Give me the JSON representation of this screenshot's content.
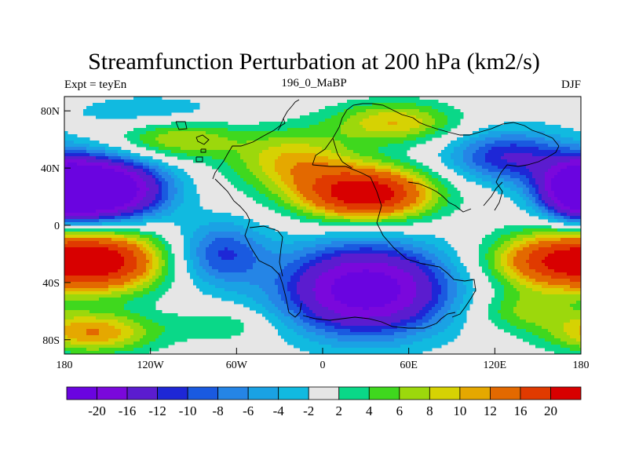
{
  "figure": {
    "title": "Streamfunction Perturbation at 200 hPa (km2/s)",
    "left_string": "Expt = teyEn",
    "center_string": "196_0_MaBP",
    "right_string": "DJF"
  },
  "map": {
    "projection": "cylindrical-equidistant",
    "lon_range": [
      -180,
      180
    ],
    "lat_range": [
      -90,
      90
    ],
    "lon_ticks": [
      {
        "value": -180,
        "label": "180"
      },
      {
        "value": -120,
        "label": "120W"
      },
      {
        "value": -60,
        "label": "60W"
      },
      {
        "value": 0,
        "label": "0"
      },
      {
        "value": 60,
        "label": "60E"
      },
      {
        "value": 120,
        "label": "120E"
      },
      {
        "value": 180,
        "label": "180"
      }
    ],
    "lat_ticks": [
      {
        "value": 80,
        "label": "80N"
      },
      {
        "value": 40,
        "label": "40N"
      },
      {
        "value": 0,
        "label": "0"
      },
      {
        "value": -40,
        "label": "40S"
      },
      {
        "value": -80,
        "label": "80S"
      }
    ],
    "background_color": "#e6e6e6"
  },
  "colorbar": {
    "colors": [
      "#6a04e0",
      "#7a08dc",
      "#5b1ccf",
      "#1e27d6",
      "#1a5ae0",
      "#2585e6",
      "#1aa2e4",
      "#11bae0",
      "#e6e6e6",
      "#0ad888",
      "#3fd81e",
      "#9cd80c",
      "#d6d203",
      "#e5a800",
      "#e36900",
      "#e03a00",
      "#d80000"
    ],
    "labels": [
      "-20",
      "-16",
      "-12",
      "-10",
      "-8",
      "-6",
      "-4",
      "-2",
      "2",
      "4",
      "6",
      "8",
      "10",
      "12",
      "16",
      "20"
    ]
  },
  "field": {
    "centers": [
      {
        "lon": -150,
        "lat": 25,
        "amp": -26,
        "slon": 28,
        "slat": 15
      },
      {
        "lon": 180,
        "lat": 25,
        "amp": -22,
        "slon": 20,
        "slat": 14
      },
      {
        "lon": 30,
        "lat": 22,
        "amp": 24,
        "slon": 32,
        "slat": 13
      },
      {
        "lon": 30,
        "lat": -45,
        "amp": -24,
        "slon": 40,
        "slat": 22
      },
      {
        "lon": -150,
        "lat": -25,
        "amp": 20,
        "slon": 28,
        "slat": 15
      },
      {
        "lon": 160,
        "lat": -25,
        "amp": 18,
        "slon": 30,
        "slat": 14
      },
      {
        "lon": -160,
        "lat": -75,
        "amp": 12,
        "slon": 30,
        "slat": 10
      },
      {
        "lon": -70,
        "lat": -20,
        "amp": -10,
        "slon": 22,
        "slat": 16
      },
      {
        "lon": -20,
        "lat": 45,
        "amp": 10,
        "slon": 30,
        "slat": 15
      },
      {
        "lon": 50,
        "lat": 72,
        "amp": 10,
        "slon": 30,
        "slat": 10
      },
      {
        "lon": 130,
        "lat": 48,
        "amp": -12,
        "slon": 30,
        "slat": 13
      },
      {
        "lon": -100,
        "lat": 60,
        "amp": 8,
        "slon": 30,
        "slat": 10
      },
      {
        "lon": -120,
        "lat": 80,
        "amp": -4,
        "slon": 40,
        "slat": 8
      },
      {
        "lon": 140,
        "lat": -60,
        "amp": 6,
        "slon": 25,
        "slat": 10
      },
      {
        "lon": -70,
        "lat": -70,
        "amp": 4,
        "slon": 25,
        "slat": 8
      }
    ]
  }
}
